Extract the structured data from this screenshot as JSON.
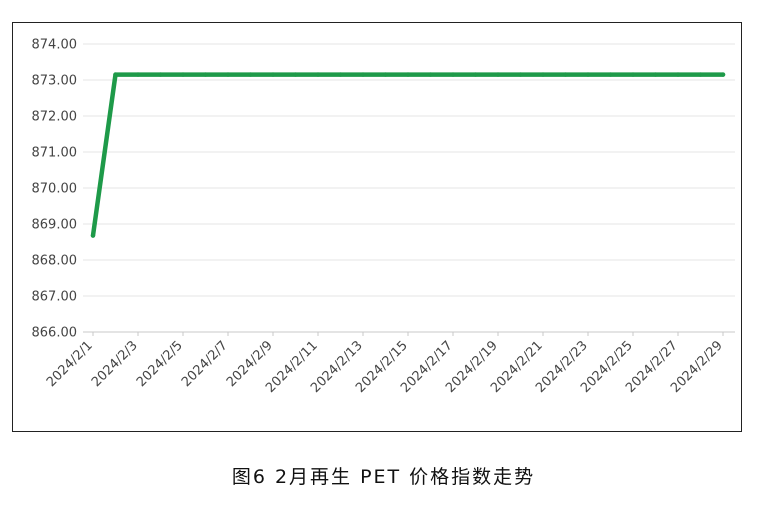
{
  "caption": "图6  2月再生 PET 价格指数走势",
  "chart_data": {
    "type": "line",
    "title": "",
    "xlabel": "",
    "ylabel": "",
    "x": [
      "2024/2/1",
      "2024/2/2",
      "2024/2/3",
      "2024/2/4",
      "2024/2/5",
      "2024/2/6",
      "2024/2/7",
      "2024/2/8",
      "2024/2/9",
      "2024/2/10",
      "2024/2/11",
      "2024/2/12",
      "2024/2/13",
      "2024/2/14",
      "2024/2/15",
      "2024/2/16",
      "2024/2/17",
      "2024/2/18",
      "2024/2/19",
      "2024/2/20",
      "2024/2/21",
      "2024/2/22",
      "2024/2/23",
      "2024/2/24",
      "2024/2/25",
      "2024/2/26",
      "2024/2/27",
      "2024/2/28",
      "2024/2/29"
    ],
    "x_tick_labels": [
      "2024/2/1",
      "2024/2/3",
      "2024/2/5",
      "2024/2/7",
      "2024/2/9",
      "2024/2/11",
      "2024/2/13",
      "2024/2/15",
      "2024/2/17",
      "2024/2/19",
      "2024/2/21",
      "2024/2/23",
      "2024/2/25",
      "2024/2/27",
      "2024/2/29"
    ],
    "y_tick_labels": [
      "866.00",
      "867.00",
      "868.00",
      "869.00",
      "870.00",
      "871.00",
      "872.00",
      "873.00",
      "874.00"
    ],
    "ylim": [
      866,
      874
    ],
    "grid": true,
    "line_color": "#1e9a49",
    "series": [
      {
        "values": [
          868.68,
          873.15,
          873.15,
          873.15,
          873.15,
          873.15,
          873.15,
          873.15,
          873.15,
          873.15,
          873.15,
          873.15,
          873.15,
          873.15,
          873.15,
          873.15,
          873.15,
          873.15,
          873.15,
          873.15,
          873.15,
          873.15,
          873.15,
          873.15,
          873.15,
          873.15,
          873.15,
          873.15,
          873.15
        ]
      }
    ]
  }
}
